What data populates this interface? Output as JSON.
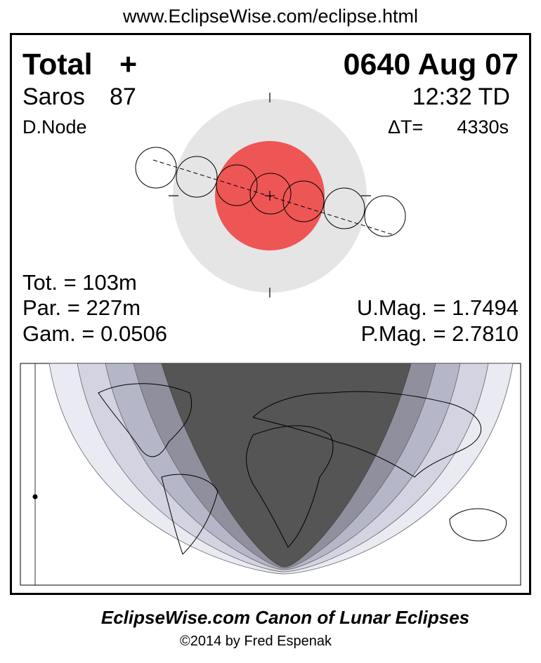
{
  "header": {
    "url": "www.EclipseWise.com/eclipse.html"
  },
  "panel": {
    "type": "Total",
    "symbol": "+",
    "date": "0640 Aug 07",
    "saros_label": "Saros",
    "saros_number": "87",
    "time": "12:32 TD",
    "node": "D.Node",
    "delta_t_label": "ΔT=",
    "delta_t_value": "4330s",
    "total_duration": "Tot. = 103m",
    "partial_duration": "Par. = 227m",
    "gamma": "Gam. = 0.0506",
    "umbral_magnitude": "U.Mag. = 1.7494",
    "penumbral_magnitude": "P.Mag. = 2.7810"
  },
  "footer": {
    "title": "EclipseWise.com Canon of Lunar Eclipses",
    "credit": "©2014 by Fred Espenak"
  }
}
